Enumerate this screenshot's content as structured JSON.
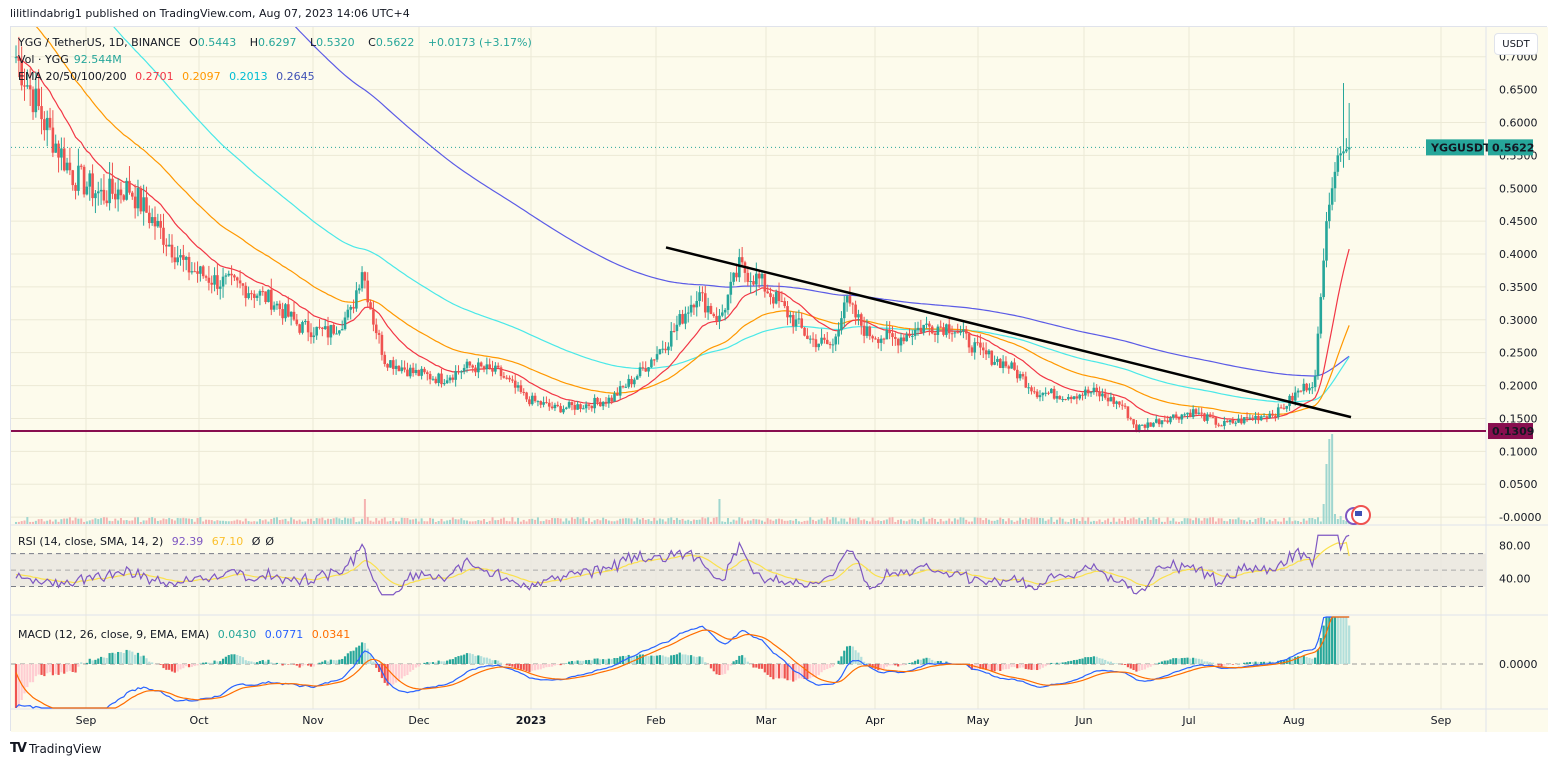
{
  "publisher": "lilitlindabrig1 published on TradingView.com, Aug 07, 2023 14:06 UTC+4",
  "footer_brand": "TradingView",
  "currency_button": "USDT",
  "legend": {
    "symbol": "YGG / TetherUS, 1D, BINANCE",
    "o_label": "O",
    "o": "0.5443",
    "h_label": "H",
    "h": "0.6297",
    "l_label": "L",
    "l": "0.5320",
    "c_label": "C",
    "c": "0.5622",
    "change": "+0.0173 (+3.17%)",
    "vol_label": "Vol · YGG",
    "vol": "92.544M",
    "ema_label": "EMA 20/50/100/200",
    "ema20": "0.2701",
    "ema50": "0.2097",
    "ema100": "0.2013",
    "ema200": "0.2645"
  },
  "rsi_legend": {
    "label": "RSI (14, close, SMA, 14, 2)",
    "rsi": "92.39",
    "sma": "67.10",
    "a": "Ø",
    "b": "Ø"
  },
  "macd_legend": {
    "label": "MACD (12, 26, close, 9, EMA, EMA)",
    "hist": "0.0430",
    "macd": "0.0771",
    "signal": "0.0341"
  },
  "price_labels": {
    "symbol_tag": "YGGUSDT",
    "last": "0.5622",
    "support": "0.1309"
  },
  "colors": {
    "up": "#26a69a",
    "down": "#ef5350",
    "ema20": "#f23645",
    "ema50": "#ff9800",
    "ema100": "#4ae8e8",
    "ema200": "#5b5be6",
    "support": "#880e4f",
    "rsi": "#7e57c2",
    "rsi_sma": "#fbe14d",
    "macd": "#2962ff",
    "signal": "#ff6d00"
  },
  "chart_data": {
    "type": "candlestick",
    "title": "YGG / TetherUS, 1D, BINANCE",
    "x_ticks": [
      "Sep",
      "Oct",
      "Nov",
      "Dec",
      "2023",
      "Feb",
      "Mar",
      "Apr",
      "May",
      "Jun",
      "Jul",
      "Aug",
      "Sep"
    ],
    "y_ticks": [
      "0.7000",
      "0.6500",
      "0.6000",
      "0.5500",
      "0.5000",
      "0.4500",
      "0.4000",
      "0.3500",
      "0.3000",
      "0.2500",
      "0.2000",
      "0.1500",
      "0.1000",
      "0.0500",
      "-0.0000"
    ],
    "ylim": [
      -0.01,
      0.73
    ],
    "close_path": [
      [
        0,
        0.7
      ],
      [
        10,
        0.6
      ],
      [
        20,
        0.52
      ],
      [
        30,
        0.49
      ],
      [
        40,
        0.5
      ],
      [
        50,
        0.44
      ],
      [
        60,
        0.38
      ],
      [
        70,
        0.36
      ],
      [
        80,
        0.35
      ],
      [
        90,
        0.33
      ],
      [
        100,
        0.29
      ],
      [
        110,
        0.28
      ],
      [
        118,
        0.31
      ],
      [
        122,
        0.38
      ],
      [
        126,
        0.3
      ],
      [
        130,
        0.24
      ],
      [
        140,
        0.22
      ],
      [
        150,
        0.21
      ],
      [
        160,
        0.23
      ],
      [
        170,
        0.22
      ],
      [
        180,
        0.18
      ],
      [
        190,
        0.165
      ],
      [
        200,
        0.17
      ],
      [
        210,
        0.18
      ],
      [
        220,
        0.22
      ],
      [
        230,
        0.27
      ],
      [
        240,
        0.34
      ],
      [
        248,
        0.3
      ],
      [
        255,
        0.38
      ],
      [
        262,
        0.36
      ],
      [
        270,
        0.32
      ],
      [
        280,
        0.27
      ],
      [
        288,
        0.26
      ],
      [
        292,
        0.33
      ],
      [
        300,
        0.28
      ],
      [
        310,
        0.27
      ],
      [
        320,
        0.29
      ],
      [
        330,
        0.29
      ],
      [
        340,
        0.25
      ],
      [
        350,
        0.23
      ],
      [
        360,
        0.19
      ],
      [
        370,
        0.185
      ],
      [
        380,
        0.19
      ],
      [
        390,
        0.17
      ],
      [
        395,
        0.135
      ],
      [
        405,
        0.15
      ],
      [
        415,
        0.16
      ],
      [
        425,
        0.14
      ],
      [
        435,
        0.15
      ],
      [
        445,
        0.16
      ],
      [
        452,
        0.19
      ],
      [
        458,
        0.21
      ],
      [
        462,
        0.45
      ],
      [
        466,
        0.55
      ],
      [
        470,
        0.5622
      ]
    ],
    "ema_last": {
      "ema20": 0.2701,
      "ema50": 0.2097,
      "ema100": 0.2013,
      "ema200": 0.2645
    },
    "trendline": {
      "from": [
        0.41,
        "mid-Feb"
      ],
      "to": [
        0.152,
        "early Aug"
      ]
    },
    "support_level": 0.1309,
    "last_price": 0.5622,
    "ohlc_last": {
      "open": 0.5443,
      "high": 0.6297,
      "low": 0.532,
      "close": 0.5622,
      "volume": "92.544M"
    },
    "rsi": {
      "ticks": [
        "80.00",
        "40.00"
      ],
      "last": 92.39,
      "sma": 67.1,
      "band": [
        30,
        70
      ]
    },
    "macd": {
      "ticks": [
        "0.0000"
      ],
      "macd": 0.0771,
      "signal": 0.0341,
      "hist": 0.043
    }
  }
}
